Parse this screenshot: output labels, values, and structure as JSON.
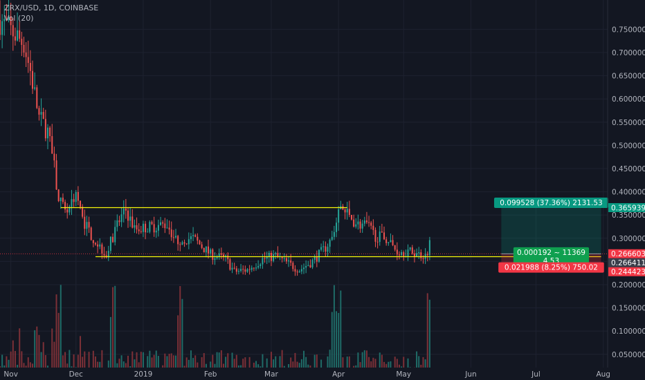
{
  "header": {
    "symbol": "ZRX/USD, 1D, COINBASE",
    "volume_label": "Vol (20)"
  },
  "colors": {
    "background": "#131722",
    "up": "#26a69a",
    "down": "#ef5350",
    "vol_up": "#1f6b67",
    "vol_down": "#7c3037",
    "level_line": "#f7f70a",
    "profit": "#089981",
    "loss": "#f23645",
    "axis_text": "#b2b5be"
  },
  "chart_data": {
    "type": "candlestick",
    "title": "ZRX/USD, 1D, COINBASE",
    "y_axis": {
      "ylim": [
        0.02,
        0.78
      ],
      "tick_values": [
        0.05,
        0.1,
        0.15,
        0.2,
        0.25,
        0.3,
        0.35,
        0.4,
        0.45,
        0.5,
        0.55,
        0.6,
        0.65,
        0.7,
        0.75
      ],
      "tick_labels": [
        "0.050000",
        "0.100000",
        "0.150000",
        "0.200000",
        "0.250000",
        "0.300000",
        "0.350000",
        "0.400000",
        "0.450000",
        "0.500000",
        "0.550000",
        "0.600000",
        "0.650000",
        "0.700000",
        "0.750000"
      ]
    },
    "x_axis": {
      "tick_labels": [
        "Nov",
        "Dec",
        "2019",
        "Feb",
        "Mar",
        "Apr",
        "May",
        "Jun",
        "Jul",
        "Aug"
      ],
      "tick_dates": [
        "2018-11-01",
        "2018-12-01",
        "2019-01-01",
        "2019-02-01",
        "2019-03-01",
        "2019-04-01",
        "2019-05-01",
        "2019-06-01",
        "2019-07-01",
        "2019-08-01"
      ],
      "range": [
        "2018-10-27",
        "2019-08-03"
      ],
      "last_candle": "2019-05-13"
    },
    "price_path": [
      [
        "2018-10-27",
        0.77
      ],
      [
        "2018-11-07",
        0.72
      ],
      [
        "2018-11-10",
        0.66
      ],
      [
        "2018-11-14",
        0.56
      ],
      [
        "2018-11-18",
        0.53
      ],
      [
        "2018-11-21",
        0.45
      ],
      [
        "2018-11-23",
        0.38
      ],
      [
        "2018-11-27",
        0.36
      ],
      [
        "2018-12-01",
        0.4
      ],
      [
        "2018-12-04",
        0.34
      ],
      [
        "2018-12-09",
        0.3
      ],
      [
        "2018-12-15",
        0.265
      ],
      [
        "2018-12-20",
        0.33
      ],
      [
        "2018-12-24",
        0.36
      ],
      [
        "2018-12-28",
        0.32
      ],
      [
        "2019-01-05",
        0.325
      ],
      [
        "2019-01-12",
        0.33
      ],
      [
        "2019-01-16",
        0.295
      ],
      [
        "2019-01-24",
        0.3
      ],
      [
        "2019-02-01",
        0.265
      ],
      [
        "2019-02-08",
        0.255
      ],
      [
        "2019-02-12",
        0.228
      ],
      [
        "2019-02-18",
        0.232
      ],
      [
        "2019-02-25",
        0.255
      ],
      [
        "2019-03-03",
        0.262
      ],
      [
        "2019-03-07",
        0.25
      ],
      [
        "2019-03-14",
        0.232
      ],
      [
        "2019-03-20",
        0.25
      ],
      [
        "2019-03-26",
        0.28
      ],
      [
        "2019-03-29",
        0.3
      ],
      [
        "2019-04-02",
        0.37
      ],
      [
        "2019-04-06",
        0.345
      ],
      [
        "2019-04-10",
        0.33
      ],
      [
        "2019-04-14",
        0.328
      ],
      [
        "2019-04-18",
        0.305
      ],
      [
        "2019-04-23",
        0.3
      ],
      [
        "2019-04-28",
        0.272
      ],
      [
        "2019-05-05",
        0.27
      ],
      [
        "2019-05-11",
        0.262
      ],
      [
        "2019-05-13",
        0.288
      ]
    ],
    "volume": {
      "max_value": 0.2,
      "peak_dates": [
        "2018-11-23",
        "2018-12-18",
        "2019-01-18",
        "2019-03-30",
        "2019-04-01",
        "2019-05-13"
      ]
    },
    "horizontal_levels": [
      {
        "price": 0.3659,
        "from": "2018-11-24",
        "to": "2019-04-05"
      },
      {
        "price": 0.2603,
        "from": "2018-12-10",
        "to": "2019-07-31"
      }
    ],
    "position": {
      "type": "long",
      "from": "2019-06-15",
      "to": "2019-07-31",
      "entry": 0.2664,
      "target": 0.3659,
      "stop": 0.2444,
      "target_label": "0.099528 (37.36%) 2131.53",
      "entry_label_line1": "0.000192 ~ 11369",
      "entry_label_line2": "4.53",
      "stop_label": "0.021988 (8.25%) 750.02"
    },
    "price_tags": [
      {
        "label": "0.365939",
        "value": 0.365939,
        "color": "#089981"
      },
      {
        "label": "0.266411",
        "value": 0.266411,
        "color": "#3a3e4a"
      },
      {
        "label": "0.266603",
        "value": 0.266603,
        "color": "#f23645"
      },
      {
        "label": "0.244423",
        "value": 0.244423,
        "color": "#f23645"
      }
    ],
    "current_price_line": 0.2664
  }
}
